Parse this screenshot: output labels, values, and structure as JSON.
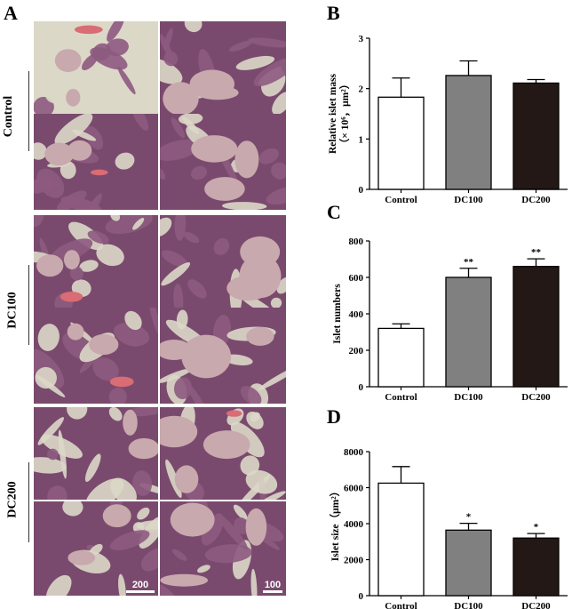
{
  "panel_a": {
    "letter": "A",
    "groups": [
      "Control",
      "DC100",
      "DC200"
    ],
    "scalebar_left": "200",
    "scalebar_right": "100",
    "colors": {
      "tissue": "#7a4a6e",
      "islet": "#c8a9ad",
      "background": "#dcd8c8",
      "vessel": "#d96c74"
    }
  },
  "chart_data": [
    {
      "panel": "B",
      "type": "bar",
      "categories": [
        "Control",
        "DC100",
        "DC200"
      ],
      "values": [
        1.83,
        2.26,
        2.11
      ],
      "errors": [
        0.38,
        0.29,
        0.07
      ],
      "significance": [
        "",
        "",
        ""
      ],
      "ylabel_line1": "Relative islet mass",
      "ylabel_line2": "（× 10⁶，μm²）",
      "ylim": [
        0,
        3
      ],
      "yticks": [
        "0",
        "1",
        "2",
        "3"
      ],
      "bar_colors": [
        "#ffffff",
        "#808080",
        "#231815"
      ]
    },
    {
      "panel": "C",
      "type": "bar",
      "categories": [
        "Control",
        "DC100",
        "DC200"
      ],
      "values": [
        320,
        600,
        660
      ],
      "errors": [
        25,
        50,
        42
      ],
      "significance": [
        "",
        "**",
        "**"
      ],
      "ylabel_line1": "Islet numbers",
      "ylabel_line2": "",
      "ylim": [
        0,
        800
      ],
      "yticks": [
        "0",
        "200",
        "400",
        "600",
        "800"
      ],
      "bar_colors": [
        "#ffffff",
        "#808080",
        "#231815"
      ]
    },
    {
      "panel": "D",
      "type": "bar",
      "categories": [
        "Control",
        "DC100",
        "DC200"
      ],
      "values": [
        6250,
        3640,
        3200
      ],
      "errors": [
        920,
        380,
        250
      ],
      "significance": [
        "",
        "*",
        "*"
      ],
      "ylabel_line1": "Islet size（μm²）",
      "ylabel_line2": "",
      "ylim": [
        0,
        8000
      ],
      "yticks": [
        "0",
        "2000",
        "4000",
        "6000",
        "8000"
      ],
      "bar_colors": [
        "#ffffff",
        "#808080",
        "#231815"
      ]
    }
  ]
}
